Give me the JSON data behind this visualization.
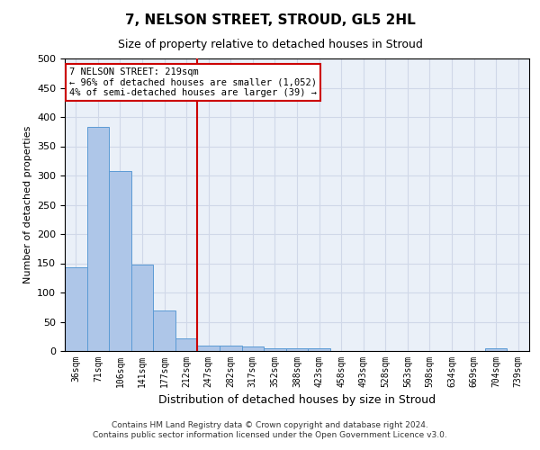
{
  "title": "7, NELSON STREET, STROUD, GL5 2HL",
  "subtitle": "Size of property relative to detached houses in Stroud",
  "xlabel": "Distribution of detached houses by size in Stroud",
  "ylabel": "Number of detached properties",
  "footer_line1": "Contains HM Land Registry data © Crown copyright and database right 2024.",
  "footer_line2": "Contains public sector information licensed under the Open Government Licence v3.0.",
  "bar_labels": [
    "36sqm",
    "71sqm",
    "106sqm",
    "141sqm",
    "177sqm",
    "212sqm",
    "247sqm",
    "282sqm",
    "317sqm",
    "352sqm",
    "388sqm",
    "423sqm",
    "458sqm",
    "493sqm",
    "528sqm",
    "563sqm",
    "598sqm",
    "634sqm",
    "669sqm",
    "704sqm",
    "739sqm"
  ],
  "bar_values": [
    143,
    383,
    307,
    148,
    70,
    22,
    10,
    10,
    7,
    5,
    5,
    5,
    0,
    0,
    0,
    0,
    0,
    0,
    0,
    5,
    0
  ],
  "bar_color": "#aec6e8",
  "bar_edge_color": "#5b9bd5",
  "grid_color": "#d0d8e8",
  "background_color": "#eaf0f8",
  "vline_x": 5.5,
  "vline_color": "#cc0000",
  "annotation_line1": "7 NELSON STREET: 219sqm",
  "annotation_line2": "← 96% of detached houses are smaller (1,052)",
  "annotation_line3": "4% of semi-detached houses are larger (39) →",
  "annotation_box_color": "#cc0000",
  "ylim": [
    0,
    500
  ],
  "yticks": [
    0,
    50,
    100,
    150,
    200,
    250,
    300,
    350,
    400,
    450,
    500
  ]
}
